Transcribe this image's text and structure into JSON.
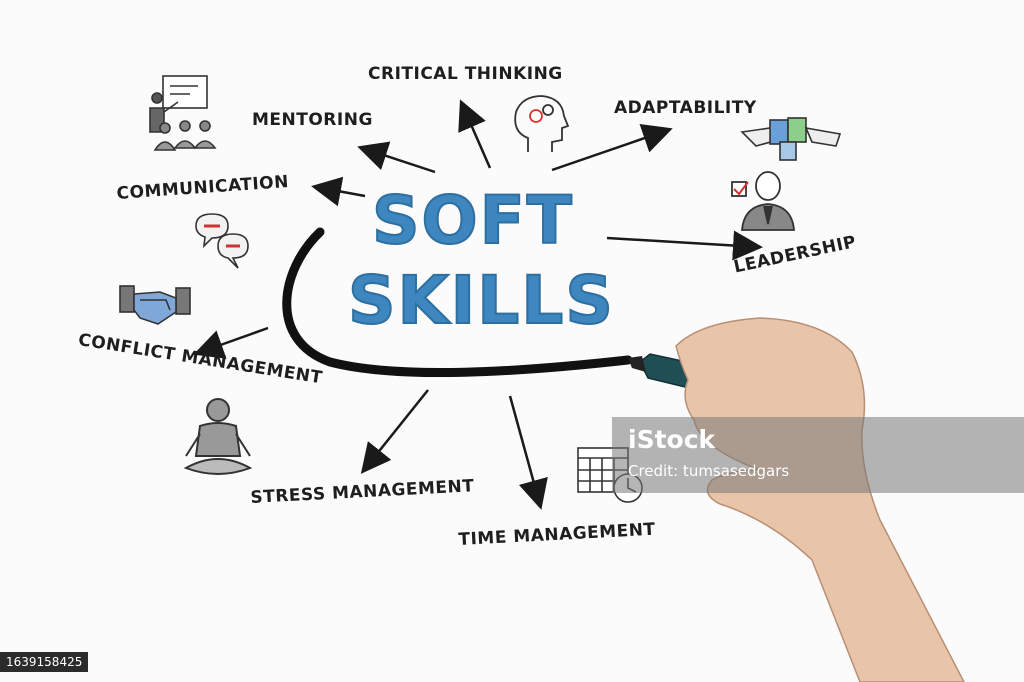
{
  "title": {
    "line1": "SOFT",
    "line2": "SKILLS"
  },
  "skills": {
    "critical_thinking": "CRITICAL THINKING",
    "adaptability": "ADAPTABILITY",
    "mentoring": "MENTORING",
    "communication": "COMMUNICATION",
    "leadership": "LEADERSHIP",
    "conflict_management": "CONFLICT MANAGEMENT",
    "stress_management": "STRESS MANAGEMENT",
    "time_management": "TIME MANAGEMENT"
  },
  "watermark": {
    "logo": "iStock",
    "credit": "Credit: tumsasedgars"
  },
  "stock_id": "1639158425",
  "colors": {
    "title_blue": "#3d86bf",
    "ink": "#1e1e1e",
    "marker_body": "#1f4f55"
  }
}
